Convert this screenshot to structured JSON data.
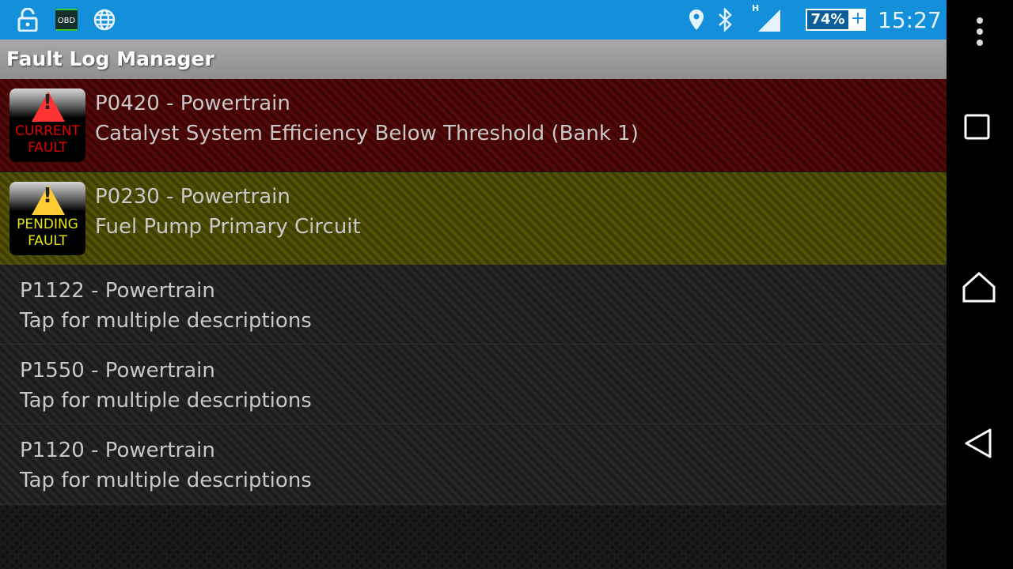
{
  "status_bar": {
    "left_icons": [
      "lock-open-icon",
      "obd-icon",
      "globe-icon"
    ],
    "obd_label": "OBD",
    "right_icons": [
      "location-icon",
      "bluetooth-icon",
      "signal-icon"
    ],
    "network_type": "H",
    "battery": "74%",
    "battery_charging": "+",
    "time": "15:27",
    "color": "#1490db"
  },
  "app": {
    "title": "Fault Log Manager"
  },
  "faults": [
    {
      "code_line": "P0420 - Powertrain",
      "description": "Catalyst System Efficiency Below Threshold (Bank 1)",
      "badge": [
        "CURRENT",
        "FAULT"
      ],
      "badge_color": "#e00000",
      "row_color": "#4a0606"
    },
    {
      "code_line": "P0230 - Powertrain",
      "description": "Fuel Pump Primary Circuit",
      "badge": [
        "PENDING",
        "FAULT"
      ],
      "badge_color": "#e8e800",
      "row_color": "#4a4a06"
    }
  ],
  "items": [
    {
      "code_line": "P1122 - Powertrain",
      "description": "Tap for multiple descriptions"
    },
    {
      "code_line": "P1550 - Powertrain",
      "description": "Tap for multiple descriptions"
    },
    {
      "code_line": "P1120 - Powertrain",
      "description": "Tap for multiple descriptions"
    }
  ],
  "nav_bar": {
    "icons": [
      "overflow-menu-icon",
      "recents-icon",
      "home-icon",
      "back-icon"
    ]
  }
}
